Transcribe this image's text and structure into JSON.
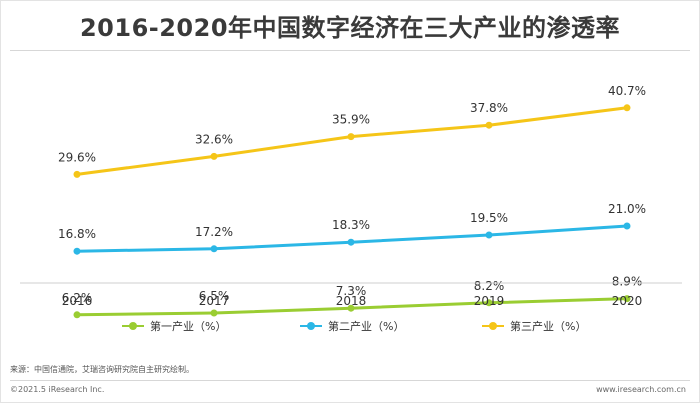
{
  "title": "2016-2020年中国数字经济在三大产业的渗透率",
  "chart_data": {
    "type": "line",
    "x": [
      "2016",
      "2017",
      "2018",
      "2019",
      "2020"
    ],
    "series": [
      {
        "name": "第一产业（%）",
        "values": [
          6.2,
          6.5,
          7.3,
          8.2,
          8.9
        ],
        "labels": [
          "6.2%",
          "6.5%",
          "7.3%",
          "8.2%",
          "8.9%"
        ],
        "color": "#9acd32"
      },
      {
        "name": "第二产业（%）",
        "values": [
          16.8,
          17.2,
          18.3,
          19.5,
          21.0
        ],
        "labels": [
          "16.8%",
          "17.2%",
          "18.3%",
          "19.5%",
          "21.0%"
        ],
        "color": "#2bb7e6"
      },
      {
        "name": "第三产业（%）",
        "values": [
          29.6,
          32.6,
          35.9,
          37.8,
          40.7
        ],
        "labels": [
          "29.6%",
          "32.6%",
          "35.9%",
          "37.8%",
          "40.7%"
        ],
        "color": "#f5c518"
      }
    ],
    "ylim": [
      0,
      50
    ],
    "grid": false,
    "legend_position": "bottom"
  },
  "source_note": "来源：中国信通院，艾瑞咨询研究院自主研究绘制。",
  "footer": {
    "copyright": "©2021.5 iResearch Inc.",
    "website": "www.iresearch.com.cn"
  }
}
